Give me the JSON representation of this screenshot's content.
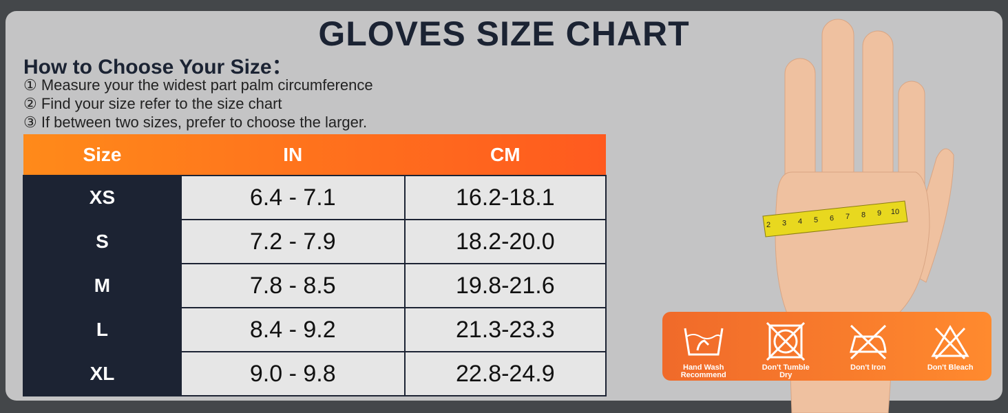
{
  "title": "GLOVES SIZE CHART",
  "instructions": {
    "heading": "How to Choose Your Size：",
    "steps": [
      "① Measure your the widest part palm circumference",
      "② Find your size refer to the size chart",
      "③ If between two sizes, prefer to choose the larger."
    ]
  },
  "table": {
    "header": [
      "Size",
      "IN",
      "CM"
    ],
    "rows": [
      [
        "XS",
        "6.4 - 7.1",
        "16.2-18.1"
      ],
      [
        "S",
        "7.2 - 7.9",
        "18.2-20.0"
      ],
      [
        "M",
        "7.8 - 8.5",
        "19.8-21.6"
      ],
      [
        "L",
        "8.4 - 9.2",
        "21.3-23.3"
      ],
      [
        "XL",
        "9.0 - 9.8",
        "22.8-24.9"
      ]
    ]
  },
  "tape_labels": [
    2,
    3,
    4,
    5,
    6,
    7,
    8,
    9,
    10
  ],
  "care": [
    "Hand Wash Recommend",
    "Don't Tumble Dry",
    "Don't Iron",
    "Don't Bleach"
  ]
}
